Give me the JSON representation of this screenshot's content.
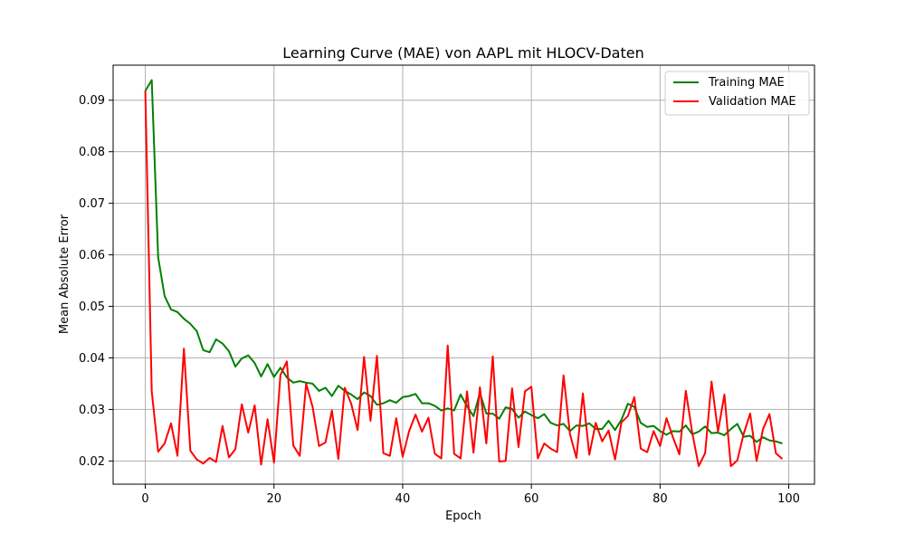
{
  "chart_data": {
    "type": "line",
    "title": "Learning Curve (MAE) von AAPL mit HLOCV-Daten",
    "xlabel": "Epoch",
    "ylabel": "Mean Absolute Error",
    "xlim": [
      -5,
      104
    ],
    "ylim": [
      0.0155,
      0.0968
    ],
    "xticks": [
      0,
      20,
      40,
      60,
      80,
      100
    ],
    "yticks": [
      0.02,
      0.03,
      0.04,
      0.05,
      0.06,
      0.07,
      0.08,
      0.09
    ],
    "ytick_labels": [
      "0.02",
      "0.03",
      "0.04",
      "0.05",
      "0.06",
      "0.07",
      "0.08",
      "0.09"
    ],
    "grid": true,
    "legend_position": "top-right",
    "x": [
      0,
      1,
      2,
      3,
      4,
      5,
      6,
      7,
      8,
      9,
      10,
      11,
      12,
      13,
      14,
      15,
      16,
      17,
      18,
      19,
      20,
      21,
      22,
      23,
      24,
      25,
      26,
      27,
      28,
      29,
      30,
      31,
      32,
      33,
      34,
      35,
      36,
      37,
      38,
      39,
      40,
      41,
      42,
      43,
      44,
      45,
      46,
      47,
      48,
      49,
      50,
      51,
      52,
      53,
      54,
      55,
      56,
      57,
      58,
      59,
      60,
      61,
      62,
      63,
      64,
      65,
      66,
      67,
      68,
      69,
      70,
      71,
      72,
      73,
      74,
      75,
      76,
      77,
      78,
      79,
      80,
      81,
      82,
      83,
      84,
      85,
      86,
      87,
      88,
      89,
      90,
      91,
      92,
      93,
      94,
      95,
      96,
      97,
      98,
      99
    ],
    "series": [
      {
        "name": "Training MAE",
        "color": "#008000",
        "values": [
          0.0918,
          0.0939,
          0.0595,
          0.052,
          0.0494,
          0.0489,
          0.0476,
          0.0466,
          0.0452,
          0.0415,
          0.0411,
          0.0436,
          0.0428,
          0.0413,
          0.0383,
          0.0399,
          0.0405,
          0.039,
          0.0364,
          0.0388,
          0.0363,
          0.0381,
          0.0362,
          0.0352,
          0.0355,
          0.0352,
          0.035,
          0.0336,
          0.0342,
          0.0326,
          0.0346,
          0.0336,
          0.0329,
          0.032,
          0.0333,
          0.0326,
          0.0309,
          0.0312,
          0.0318,
          0.0313,
          0.0324,
          0.0326,
          0.033,
          0.0312,
          0.0312,
          0.0307,
          0.0298,
          0.0302,
          0.0298,
          0.0329,
          0.0306,
          0.0287,
          0.0332,
          0.0292,
          0.0292,
          0.0282,
          0.0304,
          0.0301,
          0.0284,
          0.0296,
          0.0289,
          0.0283,
          0.0291,
          0.0274,
          0.0269,
          0.0272,
          0.0258,
          0.0269,
          0.0268,
          0.0273,
          0.0262,
          0.0262,
          0.0278,
          0.026,
          0.028,
          0.0311,
          0.0305,
          0.0274,
          0.0266,
          0.0268,
          0.0258,
          0.0251,
          0.0258,
          0.0257,
          0.0269,
          0.0252,
          0.0257,
          0.0267,
          0.0254,
          0.0255,
          0.025,
          0.0262,
          0.0272,
          0.0247,
          0.0249,
          0.0237,
          0.0246,
          0.024,
          0.0238,
          0.0234
        ]
      },
      {
        "name": "Validation MAE",
        "color": "#ff0000",
        "values": [
          0.0918,
          0.0335,
          0.0218,
          0.0234,
          0.0273,
          0.021,
          0.0418,
          0.022,
          0.0203,
          0.0195,
          0.0206,
          0.0198,
          0.0268,
          0.0207,
          0.0223,
          0.031,
          0.0255,
          0.0308,
          0.0193,
          0.0281,
          0.0197,
          0.0367,
          0.0393,
          0.023,
          0.021,
          0.035,
          0.0305,
          0.0229,
          0.0236,
          0.0298,
          0.0204,
          0.0342,
          0.0311,
          0.026,
          0.0402,
          0.0278,
          0.0404,
          0.0215,
          0.021,
          0.0283,
          0.0208,
          0.0258,
          0.029,
          0.0257,
          0.0284,
          0.0214,
          0.0205,
          0.0424,
          0.0214,
          0.0205,
          0.0335,
          0.0216,
          0.0343,
          0.0234,
          0.0403,
          0.0199,
          0.02,
          0.0341,
          0.0227,
          0.0335,
          0.0344,
          0.0205,
          0.0234,
          0.0224,
          0.0217,
          0.0366,
          0.0252,
          0.0206,
          0.0331,
          0.0212,
          0.0274,
          0.0238,
          0.0259,
          0.0203,
          0.0275,
          0.0287,
          0.0324,
          0.0224,
          0.0217,
          0.0258,
          0.0229,
          0.0283,
          0.0246,
          0.0213,
          0.0336,
          0.0255,
          0.019,
          0.0215,
          0.0354,
          0.0257,
          0.0329,
          0.019,
          0.0201,
          0.0253,
          0.0292,
          0.02,
          0.0262,
          0.0291,
          0.0215,
          0.0204
        ]
      }
    ]
  }
}
